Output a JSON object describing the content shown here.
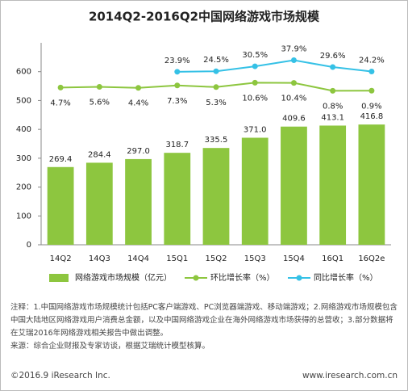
{
  "chart_data": {
    "type": "bar_line",
    "title": "2014Q2-2016Q2中国网络游戏市场规模",
    "categories": [
      "14Q2",
      "14Q3",
      "14Q4",
      "15Q1",
      "15Q2",
      "15Q3",
      "15Q4",
      "16Q1",
      "16Q2e"
    ],
    "ylim": [
      0,
      700
    ],
    "yticks": [
      0,
      100,
      200,
      300,
      400,
      500,
      600
    ],
    "y2lim": [
      -186,
      59
    ],
    "series": [
      {
        "name": "网络游戏市场规模（亿元）",
        "type": "bar",
        "color": "#8dc63f",
        "values": [
          269.4,
          284.4,
          297.0,
          318.7,
          335.5,
          371.0,
          409.6,
          413.1,
          416.8
        ],
        "value_labels": [
          "269.4",
          "284.4",
          "297.0",
          "318.7",
          "335.5",
          "371.0",
          "409.6",
          "413.1",
          "416.8"
        ]
      },
      {
        "name": "环比增长率（%）",
        "type": "line",
        "axis": "y2",
        "color": "#8dc63f",
        "label_pos": "below",
        "values": [
          4.7,
          5.6,
          4.4,
          7.3,
          5.3,
          10.6,
          10.4,
          0.8,
          0.9
        ],
        "value_labels": [
          "4.7%",
          "5.6%",
          "4.4%",
          "7.3%",
          "5.3%",
          "10.6%",
          "10.4%",
          "0.8%",
          "0.9%"
        ]
      },
      {
        "name": "同比增长率（%）",
        "type": "line",
        "axis": "y2",
        "color": "#35c1e6",
        "label_pos": "above",
        "values": [
          null,
          null,
          null,
          23.9,
          24.5,
          30.5,
          37.9,
          29.6,
          24.2
        ],
        "value_labels": [
          null,
          null,
          null,
          "23.9%",
          "24.5%",
          "30.5%",
          "37.9%",
          "29.6%",
          "24.2%"
        ]
      }
    ],
    "note": "注释：1.中国网络游戏市场规模统计包括PC客户端游戏、PC浏览器端游戏、移动端游戏；2.网络游戏市场规模包含中国大陆地区网络游戏用户消费总金额，以及中国网络游戏企业在海外网络游戏市场获得的总营收；3.部分数据将在艾瑞2016年网络游戏相关报告中做出调整。",
    "source": "来源：综合企业财报及专家访谈，根据艾瑞统计模型核算。",
    "copyright": "©2016.9 iResearch Inc.",
    "website": "www.iresearch.com.cn"
  }
}
